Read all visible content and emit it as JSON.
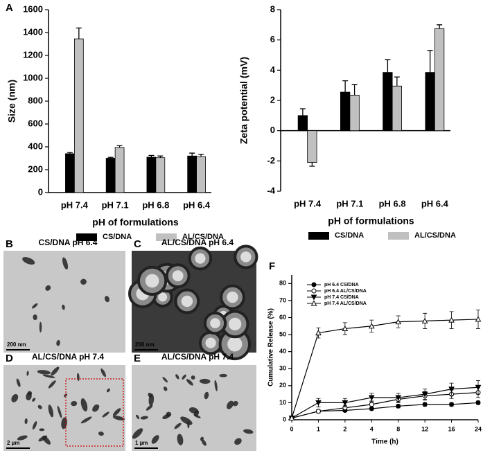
{
  "chart_data": [
    {
      "type": "bar",
      "panel": "A",
      "y_label": "Size (nm)",
      "x_label": "pH of formulations",
      "categories": [
        "pH 7.4",
        "pH 7.1",
        "pH 6.8",
        "pH 6.4"
      ],
      "ylim": [
        0,
        1600
      ],
      "yticks": [
        0,
        200,
        400,
        600,
        800,
        1000,
        1200,
        1400,
        1600
      ],
      "series": [
        {
          "name": "CS/DNA",
          "color": "#000000",
          "values": [
            340,
            300,
            310,
            320
          ],
          "errors": [
            10,
            8,
            15,
            25
          ]
        },
        {
          "name": "AL/CS/DNA",
          "color": "#c0c0c0",
          "values": [
            1345,
            395,
            305,
            315
          ],
          "errors": [
            95,
            15,
            15,
            20
          ]
        }
      ]
    },
    {
      "type": "bar",
      "y_label": "Zeta potential (mV)",
      "x_label": "pH of formulations",
      "categories": [
        "pH 7.4",
        "pH 7.1",
        "pH 6.8",
        "pH 6.4"
      ],
      "ylim": [
        -4,
        8
      ],
      "yticks": [
        -4,
        -2,
        0,
        2,
        4,
        6,
        8
      ],
      "series": [
        {
          "name": "CS/DNA",
          "color": "#000000",
          "values": [
            1.0,
            2.55,
            3.85,
            3.85
          ],
          "errors": [
            0.45,
            0.75,
            0.85,
            1.45
          ]
        },
        {
          "name": "AL/CS/DNA",
          "color": "#c0c0c0",
          "values": [
            -2.1,
            2.35,
            2.95,
            6.75
          ],
          "errors": [
            0.25,
            0.7,
            0.6,
            0.25
          ]
        }
      ]
    },
    {
      "type": "line",
      "panel": "F",
      "y_label": "Cumulative Release (%)",
      "x_label": "Time (h)",
      "categories": [
        "0",
        "1",
        "2",
        "4",
        "8",
        "12",
        "16",
        "24"
      ],
      "ylim": [
        0,
        85
      ],
      "yticks": [
        0,
        10,
        20,
        30,
        40,
        50,
        60,
        70,
        80
      ],
      "series": [
        {
          "name": "pH 6.4 CS/DNA",
          "color": "#000000",
          "marker": "circle",
          "filled": true,
          "values": [
            1,
            5,
            5.5,
            6.5,
            8,
            9,
            9,
            10
          ],
          "errors": [
            0.5,
            0.8,
            0.8,
            0.8,
            1,
            1,
            1,
            1
          ]
        },
        {
          "name": "pH 6.4 AL/CS/DNA",
          "color": "#000000",
          "marker": "circle",
          "filled": false,
          "values": [
            1,
            5,
            7,
            9,
            12,
            14,
            15,
            16
          ],
          "errors": [
            0.5,
            1,
            1.5,
            2,
            2,
            2.5,
            2.5,
            3
          ]
        },
        {
          "name": "pH 7.4 CS/DNA",
          "color": "#000000",
          "marker": "triangle-down",
          "filled": true,
          "values": [
            1,
            10,
            10,
            13,
            13,
            15,
            18,
            19
          ],
          "errors": [
            0.5,
            2.5,
            2.5,
            2.5,
            2.5,
            3,
            3.5,
            4
          ]
        },
        {
          "name": "pH 7.4 AL/CS/DNA",
          "color": "#000000",
          "marker": "triangle-up",
          "filled": false,
          "values": [
            1,
            51,
            53.5,
            55,
            57.5,
            58,
            58.5,
            59
          ],
          "errors": [
            0.5,
            3,
            3.5,
            3.5,
            3.5,
            4.5,
            5,
            5.5
          ]
        }
      ]
    }
  ],
  "micrographs": [
    {
      "letter": "B",
      "title": "CS/DNA pH 6.4",
      "scale_bar": "200 nm"
    },
    {
      "letter": "C",
      "title": "AL/CS/DNA pH 6.4",
      "scale_bar": "200 nm"
    },
    {
      "letter": "D",
      "title": "AL/CS/DNA pH 7.4",
      "scale_bar": "2 µm"
    },
    {
      "letter": "E",
      "title": "AL/CS/DNA pH 7.4",
      "scale_bar": "1 µm"
    }
  ]
}
